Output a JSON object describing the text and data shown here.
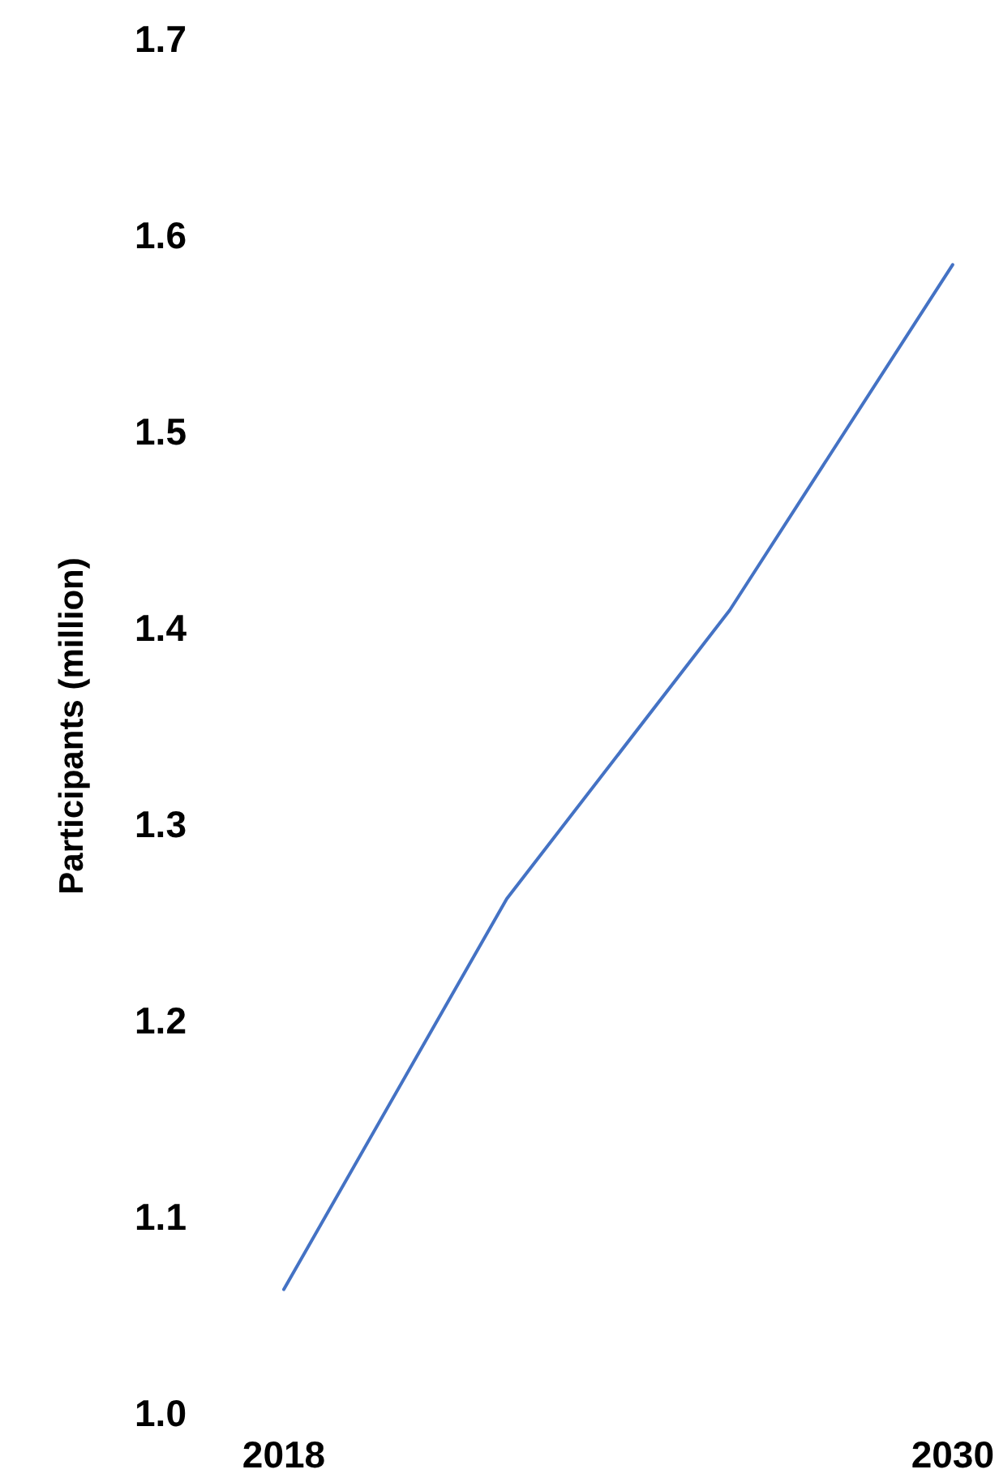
{
  "chart_data": {
    "type": "line",
    "ylabel": "Participants (million)",
    "x": [
      2018,
      2022,
      2026,
      2030
    ],
    "series": [
      {
        "color": "#4472c4",
        "values": [
          1.063,
          1.262,
          1.409,
          1.585
        ]
      }
    ],
    "xlim": [
      2018,
      2030
    ],
    "xticks": [
      2018,
      2030
    ],
    "ylim": [
      1.0,
      1.7
    ],
    "yticks": [
      {
        "value": 1.0,
        "label": "1.0"
      },
      1.1,
      1.2,
      1.3,
      1.4,
      1.5,
      1.6,
      1.7
    ],
    "grid": false,
    "marker": "none",
    "line_style": "solid"
  }
}
